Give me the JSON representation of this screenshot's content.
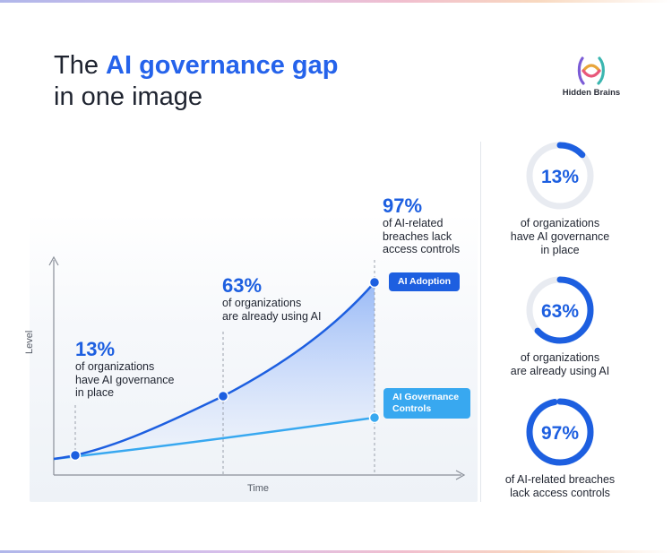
{
  "header": {
    "title_prefix": "The ",
    "title_accent": "AI governance gap",
    "title_suffix": "in one image",
    "brand_name": "Hidden Brains"
  },
  "colors": {
    "accent": "#2563eb",
    "adoption": "#1d5fe0",
    "governance": "#38a8f0",
    "ring_track": "#e8ebf1"
  },
  "chart_data": {
    "type": "line",
    "xlabel": "Time",
    "ylabel": "Level",
    "series": [
      {
        "name": "AI Adoption",
        "color": "#1d5fe0",
        "filled": true
      },
      {
        "name": "AI Governance Controls",
        "color": "#38a8f0",
        "filled": false
      }
    ],
    "annotations": [
      {
        "value": "13%",
        "text": [
          "of organizations",
          "have AI governance",
          "in place"
        ]
      },
      {
        "value": "63%",
        "text": [
          "of organizations",
          "are already using AI"
        ]
      },
      {
        "value": "97%",
        "text": [
          "of AI-related",
          "breaches lack",
          "access controls"
        ]
      }
    ]
  },
  "stats": [
    {
      "value": "13%",
      "fraction": 0.13,
      "text": [
        "of organizations",
        "have AI governance",
        "in place"
      ]
    },
    {
      "value": "63%",
      "fraction": 0.63,
      "text": [
        "of organizations",
        "are already using AI"
      ]
    },
    {
      "value": "97%",
      "fraction": 0.97,
      "text": [
        "of AI-related breaches",
        "lack access controls"
      ]
    }
  ]
}
